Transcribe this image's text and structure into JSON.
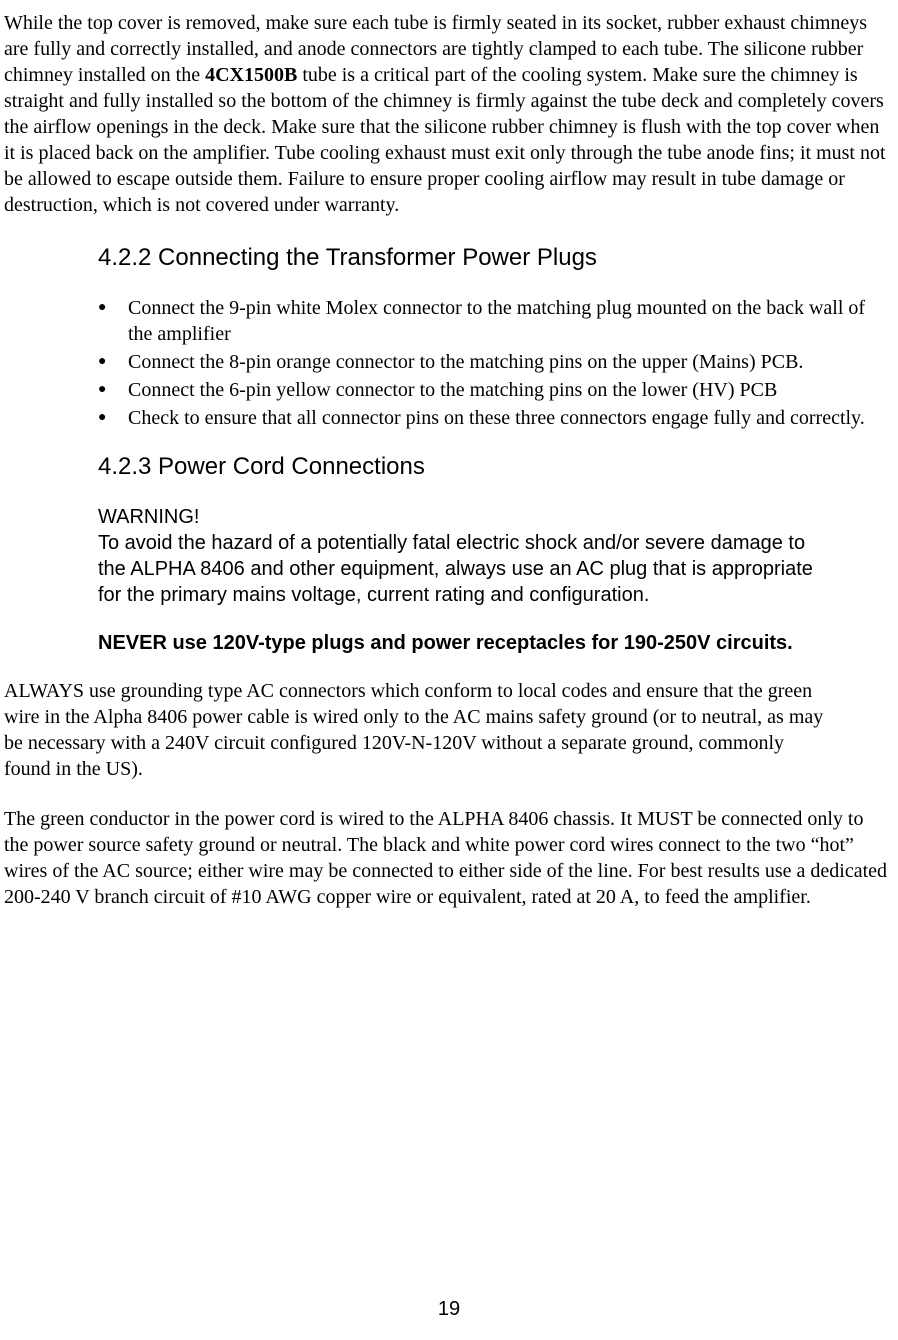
{
  "p1_a": "While the top cover is removed, make sure each tube is firmly seated in its socket, rubber exhaust chimneys are fully and correctly installed, and anode connectors are tightly clamped to each tube. The silicone rubber chimney installed on the ",
  "p1_bold": "4CX1500B",
  "p1_b": " tube is a critical part of the cooling system.  Make sure the chimney is straight and fully installed so the bottom of the chimney is firmly against the tube deck and completely covers the airflow openings in the deck. Make sure that the silicone rubber chimney is flush with the top cover when it is placed back on the amplifier.  Tube cooling exhaust must exit only through the tube anode fins; it must not be allowed to escape outside them.  Failure to ensure proper cooling airflow may result in tube damage or destruction, which is not covered under warranty.",
  "h422": "4.2.2 Connecting the Transformer Power Plugs",
  "bullets": [
    "Connect the 9-pin white Molex connector to the matching plug mounted on the back wall of the amplifier",
    "Connect the 8-pin orange connector to the matching pins on the upper (Mains) PCB.",
    "Connect the 6-pin yellow connector to the matching pins on the lower (HV) PCB",
    "Check to ensure that all connector pins on these three connectors engage fully and correctly."
  ],
  "h423": "4.2.3 Power Cord Connections",
  "warning_title": "WARNING!",
  "warning_body": "To avoid the hazard of a potentially fatal electric shock and/or severe damage to the ALPHA 8406 and other equipment, always use an AC plug that is appropriate for the primary mains voltage, current rating and configuration.",
  "never_text": "NEVER use 120V-type plugs and power receptacles for 190-250V circuits.",
  "p2": "ALWAYS use grounding type AC connectors which conform to local codes and ensure that the green wire in the Alpha 8406 power cable is wired only to the AC mains safety ground (or to neutral, as may be necessary with a 240V circuit configured 120V-N-120V without a separate ground, commonly found in the US).",
  "p3": "The green conductor in the power cord is wired to the ALPHA 8406 chassis.  It MUST be connected only to the power source safety ground or neutral. The black and white power cord wires connect to the two “hot” wires of the AC source; either wire may be connected to either side of the line.  For best results use a dedicated 200-240 V branch circuit of #10 AWG copper wire or equivalent, rated at 20 A, to feed the amplifier.",
  "page_number": "19"
}
